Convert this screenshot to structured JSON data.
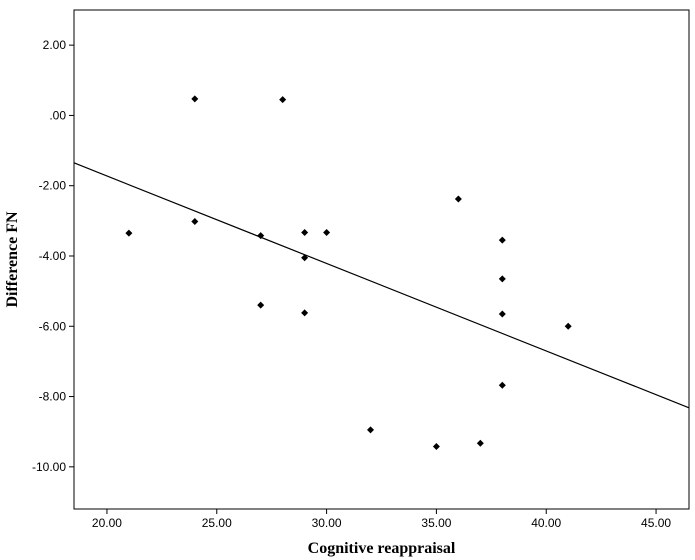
{
  "chart_data": {
    "type": "scatter",
    "title": "",
    "xlabel": "Cognitive reappraisal",
    "ylabel": "Difference FN",
    "xlim": [
      18.5,
      46.5
    ],
    "ylim": [
      -11.2,
      3.0
    ],
    "x_ticks": [
      20,
      25,
      30,
      35,
      40,
      45
    ],
    "x_tick_labels": [
      "20.00",
      "25.00",
      "30.00",
      "35.00",
      "40.00",
      "45.00"
    ],
    "y_ticks": [
      2,
      0,
      -2,
      -4,
      -6,
      -8,
      -10
    ],
    "y_tick_labels": [
      "2.00",
      ".00",
      "-2.00",
      "-4.00",
      "-6.00",
      "-8.00",
      "-10.00"
    ],
    "grid": false,
    "legend": "none",
    "points": [
      {
        "x": 21,
        "y": -3.35
      },
      {
        "x": 24,
        "y": 0.47
      },
      {
        "x": 24,
        "y": -3.02
      },
      {
        "x": 27,
        "y": -3.42
      },
      {
        "x": 27,
        "y": -5.4
      },
      {
        "x": 28,
        "y": 0.45
      },
      {
        "x": 29,
        "y": -3.33
      },
      {
        "x": 29,
        "y": -4.05
      },
      {
        "x": 29,
        "y": -5.62
      },
      {
        "x": 30,
        "y": -3.33
      },
      {
        "x": 32,
        "y": -8.95
      },
      {
        "x": 35,
        "y": -9.42
      },
      {
        "x": 36,
        "y": -2.38
      },
      {
        "x": 37,
        "y": -9.33
      },
      {
        "x": 38,
        "y": -3.55
      },
      {
        "x": 38,
        "y": -4.65
      },
      {
        "x": 38,
        "y": -5.65
      },
      {
        "x": 38,
        "y": -7.68
      },
      {
        "x": 41,
        "y": -6.0
      }
    ],
    "fit_line": {
      "x1": 18.5,
      "y1": -1.35,
      "x2": 46.5,
      "y2": -8.32
    },
    "colors": {
      "marker": "#000000",
      "line": "#000000",
      "axis": "#000000"
    }
  }
}
